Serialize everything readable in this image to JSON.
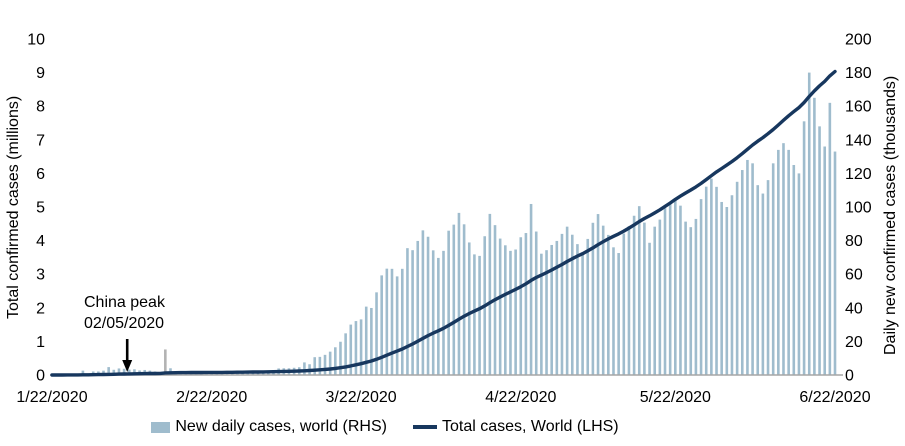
{
  "axes": {
    "left": {
      "title": "Total confirmed cases (millions)",
      "ticks": [
        0,
        1,
        2,
        3,
        4,
        5,
        6,
        7,
        8,
        9,
        10
      ],
      "max": 10
    },
    "right": {
      "title": "Daily new confirmed cases (thousands)",
      "ticks": [
        0,
        20,
        40,
        60,
        80,
        100,
        120,
        140,
        160,
        180,
        200
      ],
      "max": 200
    },
    "x": {
      "tick_labels": [
        "1/22/2020",
        "2/22/2020",
        "3/22/2020",
        "4/22/2020",
        "5/22/2020",
        "6/22/2020"
      ],
      "tick_indices": [
        0,
        31,
        60,
        91,
        121,
        152
      ]
    }
  },
  "annotation": {
    "line1": "China peak",
    "line2": "02/05/2020",
    "arrow_index": 14.6
  },
  "legend": {
    "bars_label": "New daily cases, world (RHS)",
    "line_label": "Total cases, World (LHS)"
  },
  "colors": {
    "bar": "#9fbccd",
    "bar_outlier": "#b3b3b3",
    "line": "#17375e",
    "axis_line": "#a6a6a6",
    "text": "#000000"
  },
  "chart_data": {
    "type": "bar+line",
    "x_start": "1/22/2020",
    "x_end": "6/22/2020",
    "bars_series_name": "New daily cases, world (RHS)",
    "line_series_name": "Total cases, World (LHS)",
    "line_is_cumulative_sum_of_bars": true,
    "rhs_axis_range": [
      0,
      200
    ],
    "lhs_axis_range": [
      0,
      10
    ],
    "outlier_bar_index": 22,
    "outlier_bar_date": "2/13/2020",
    "daily_new_cases_thousands": [
      0.6,
      0.3,
      0.5,
      0.7,
      0.7,
      0.8,
      2.6,
      0.6,
      2.1,
      2.1,
      2.6,
      4.7,
      3.1,
      3.9,
      3.7,
      3.2,
      3.4,
      2.7,
      3.0,
      2.6,
      2.1,
      0.4,
      15.2,
      4.0,
      2.2,
      2.2,
      2.0,
      1.9,
      0.5,
      0.6,
      1.0,
      1.3,
      0.6,
      0.9,
      1.0,
      1.2,
      1.4,
      1.4,
      1.9,
      2.4,
      2.0,
      2.6,
      2.4,
      2.8,
      3.9,
      4.0,
      4.0,
      4.3,
      4.6,
      7.5,
      6.4,
      10.6,
      10.8,
      12.0,
      13.9,
      16.5,
      19.8,
      24.8,
      30.0,
      32.1,
      33.1,
      40.7,
      39.9,
      49.2,
      59.3,
      63.3,
      63.2,
      58.7,
      63.2,
      75.5,
      74.3,
      79.8,
      86.1,
      82.3,
      74.2,
      69.7,
      73.9,
      85.9,
      89.5,
      96.5,
      89.7,
      78.9,
      71.8,
      70.9,
      82.6,
      95.9,
      89.2,
      81.2,
      77.2,
      73.9,
      74.7,
      82.0,
      84.5,
      101.8,
      85.4,
      72.2,
      74.3,
      77.4,
      79.8,
      84.0,
      88.3,
      83.5,
      77.9,
      73.0,
      81.0,
      90.6,
      95.8,
      88.9,
      83.4,
      76.0,
      72.6,
      84.2,
      88.6,
      94.8,
      100.5,
      90.7,
      78.7,
      88.3,
      92.5,
      99.3,
      102.9,
      104.7,
      100.8,
      91.3,
      88.0,
      92.9,
      104.7,
      112.1,
      116.9,
      112.0,
      103.0,
      100.0,
      107.0,
      115.0,
      122.0,
      128.0,
      126.0,
      113.0,
      108.0,
      116.0,
      126.0,
      134.0,
      138.0,
      134.0,
      125.0,
      120.0,
      151.0,
      180.0,
      165.0,
      148.0,
      136.0,
      162.0,
      133.0
    ]
  }
}
